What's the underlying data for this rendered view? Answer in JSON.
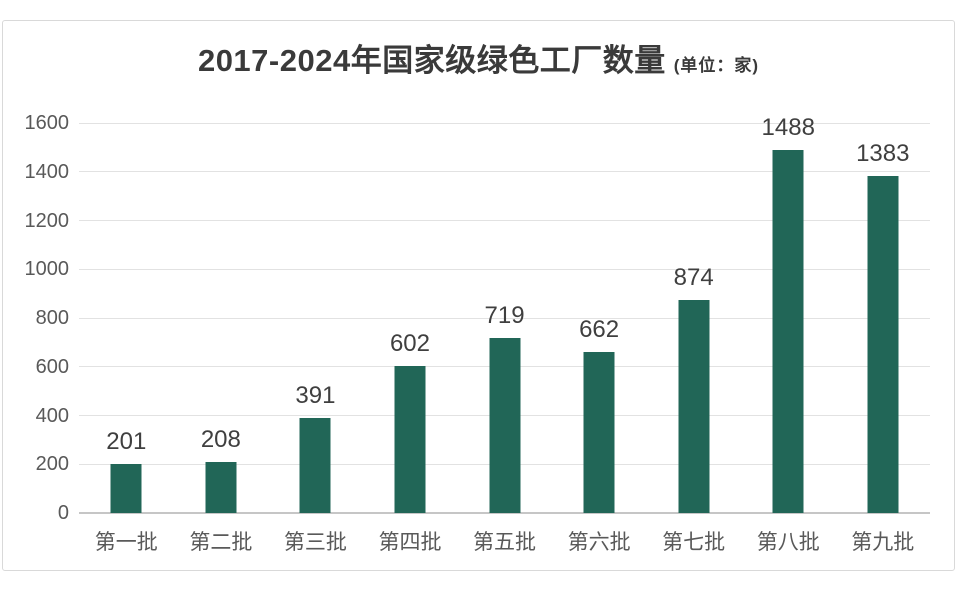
{
  "card": {
    "title": "2017-2024年国家级绿色工厂数量",
    "title_unit": "(单位：家)"
  },
  "chart_data": {
    "type": "bar",
    "title": "2017-2024年国家级绿色工厂数量",
    "unit_note": "(单位：家)",
    "categories": [
      "第一批",
      "第二批",
      "第三批",
      "第四批",
      "第五批",
      "第六批",
      "第七批",
      "第八批",
      "第九批"
    ],
    "values": [
      201,
      208,
      391,
      602,
      719,
      662,
      874,
      1488,
      1383
    ],
    "xlabel": "",
    "ylabel": "",
    "ylim": [
      0,
      1600
    ],
    "yticks": [
      0,
      200,
      400,
      600,
      800,
      1000,
      1200,
      1400,
      1600
    ],
    "grid": true,
    "legend": "none",
    "colors": {
      "bar": "#216657",
      "value_label": "#3f3f3f",
      "axis_text": "#595959",
      "gridline": "#e2e2e2",
      "baseline": "#c6c6c6",
      "title_text": "#3a3a3a"
    }
  }
}
